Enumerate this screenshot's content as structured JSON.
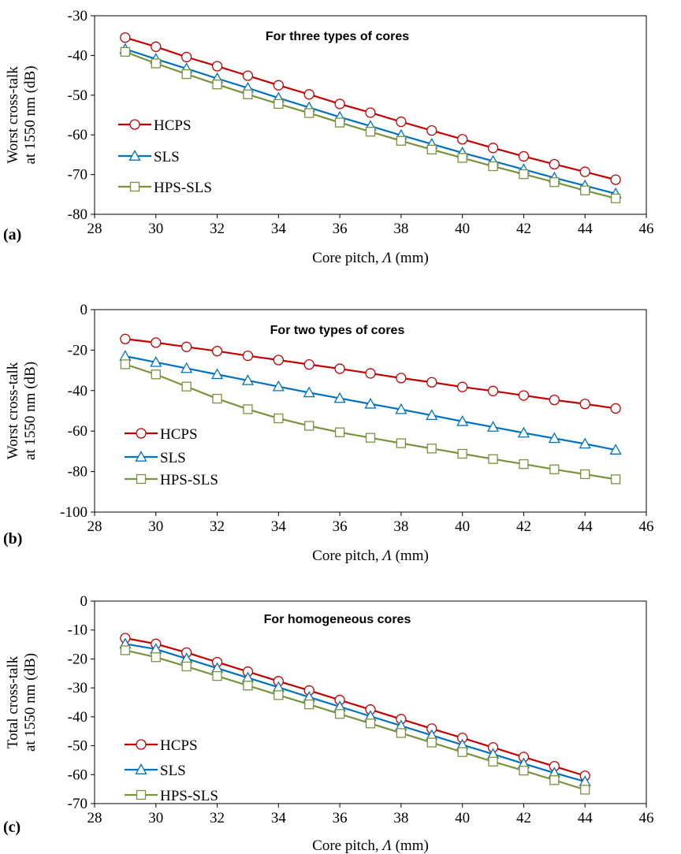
{
  "colors": {
    "HCPS": "#C00000",
    "SLS": "#0070C0",
    "HPS-SLS": "#77933C",
    "axis": "#000000"
  },
  "chart_data": [
    {
      "panel_label": "(a)",
      "type": "line",
      "title": "For three types of cores",
      "xlabel_text": "Core pitch, ",
      "xlabel_symbol": "Λ",
      "xlabel_unit": " (mm)",
      "ylabel": [
        "Worst cross-talk",
        "at 1550 nm (dB)"
      ],
      "xlim": [
        28,
        46
      ],
      "ylim": [
        -80,
        -30
      ],
      "xticks": [
        28,
        30,
        32,
        34,
        36,
        38,
        40,
        42,
        44,
        46
      ],
      "yticks": [
        -80,
        -70,
        -60,
        -50,
        -40,
        -30
      ],
      "grid": false,
      "legend_position": "left",
      "series": [
        {
          "name": "HCPS",
          "marker": "circle",
          "x": [
            29,
            30,
            31,
            32,
            33,
            34,
            35,
            36,
            37,
            38,
            39,
            40,
            41,
            42,
            43,
            44,
            45
          ],
          "y": [
            -35.5,
            -37.8,
            -40.4,
            -42.7,
            -45.1,
            -47.5,
            -49.8,
            -52.2,
            -54.4,
            -56.7,
            -58.9,
            -61.1,
            -63.3,
            -65.4,
            -67.4,
            -69.3,
            -71.3
          ]
        },
        {
          "name": "SLS",
          "marker": "triangle",
          "x": [
            29,
            30,
            31,
            32,
            33,
            34,
            35,
            36,
            37,
            38,
            39,
            40,
            41,
            42,
            43,
            44,
            45
          ],
          "y": [
            -38.4,
            -40.9,
            -43.3,
            -45.8,
            -48.2,
            -50.7,
            -53.1,
            -55.5,
            -57.8,
            -60.1,
            -62.3,
            -64.5,
            -66.6,
            -68.7,
            -70.8,
            -72.8,
            -74.8
          ]
        },
        {
          "name": "HPS-SLS",
          "marker": "square",
          "x": [
            29,
            30,
            31,
            32,
            33,
            34,
            35,
            36,
            37,
            38,
            39,
            40,
            41,
            42,
            43,
            44,
            45
          ],
          "y": [
            -39.1,
            -42.0,
            -44.7,
            -47.3,
            -49.8,
            -52.2,
            -54.5,
            -56.9,
            -59.2,
            -61.5,
            -63.7,
            -65.8,
            -67.9,
            -69.9,
            -71.9,
            -74.0,
            -76.0
          ]
        }
      ]
    },
    {
      "panel_label": "(b)",
      "type": "line",
      "title": "For two types of cores",
      "xlabel_text": "Core pitch, ",
      "xlabel_symbol": "Λ",
      "xlabel_unit": " (mm)",
      "ylabel": [
        "Worst cross-talk",
        "at 1550 nm (dB)"
      ],
      "xlim": [
        28,
        46
      ],
      "ylim": [
        -100,
        0
      ],
      "xticks": [
        28,
        30,
        32,
        34,
        36,
        38,
        40,
        42,
        44,
        46
      ],
      "yticks": [
        -100,
        -80,
        -60,
        -40,
        -20,
        0
      ],
      "grid": false,
      "legend_position": "left",
      "series": [
        {
          "name": "HCPS",
          "marker": "circle",
          "x": [
            29,
            30,
            31,
            32,
            33,
            34,
            35,
            36,
            37,
            38,
            39,
            40,
            41,
            42,
            43,
            44,
            45
          ],
          "y": [
            -14.5,
            -16.3,
            -18.4,
            -20.5,
            -22.8,
            -24.9,
            -27.1,
            -29.2,
            -31.5,
            -33.8,
            -35.9,
            -38.2,
            -40.2,
            -42.4,
            -44.6,
            -46.6,
            -48.8
          ]
        },
        {
          "name": "SLS",
          "marker": "triangle",
          "x": [
            29,
            30,
            31,
            32,
            33,
            34,
            35,
            36,
            37,
            38,
            39,
            40,
            41,
            42,
            43,
            44,
            45
          ],
          "y": [
            -23.0,
            -26.0,
            -29.0,
            -32.0,
            -35.0,
            -38.0,
            -41.0,
            -43.8,
            -46.6,
            -49.3,
            -52.2,
            -55.2,
            -58.0,
            -60.9,
            -63.6,
            -66.3,
            -69.3
          ]
        },
        {
          "name": "HPS-SLS",
          "marker": "square",
          "x": [
            29,
            30,
            31,
            32,
            33,
            34,
            35,
            36,
            37,
            38,
            39,
            40,
            41,
            42,
            43,
            44,
            45
          ],
          "y": [
            -27.0,
            -32.0,
            -38.0,
            -44.0,
            -49.2,
            -53.7,
            -57.4,
            -60.6,
            -63.3,
            -66.0,
            -68.6,
            -71.2,
            -73.8,
            -76.3,
            -78.9,
            -81.3,
            -83.8
          ]
        }
      ]
    },
    {
      "panel_label": "(c)",
      "type": "line",
      "title": "For homogeneous cores",
      "xlabel_text": "Core pitch, ",
      "xlabel_symbol": "Λ",
      "xlabel_unit": " (mm)",
      "ylabel": [
        "Total cross-talk",
        "at 1550 nm (dB)"
      ],
      "xlim": [
        28,
        46
      ],
      "ylim": [
        -70,
        0
      ],
      "xticks": [
        28,
        30,
        32,
        34,
        36,
        38,
        40,
        42,
        44,
        46
      ],
      "yticks": [
        -70,
        -60,
        -50,
        -40,
        -30,
        -20,
        -10,
        0
      ],
      "grid": false,
      "legend_position": "left",
      "series": [
        {
          "name": "HCPS",
          "marker": "circle",
          "x": [
            29,
            30,
            31,
            32,
            33,
            34,
            35,
            36,
            37,
            38,
            39,
            40,
            41,
            42,
            43,
            44
          ],
          "y": [
            -12.8,
            -14.8,
            -17.8,
            -21.1,
            -24.4,
            -27.7,
            -30.9,
            -34.2,
            -37.5,
            -40.8,
            -44.1,
            -47.3,
            -50.6,
            -53.9,
            -57.1,
            -60.4
          ]
        },
        {
          "name": "SLS",
          "marker": "triangle",
          "x": [
            29,
            30,
            31,
            32,
            33,
            34,
            35,
            36,
            37,
            38,
            39,
            40,
            41,
            42,
            43,
            44
          ],
          "y": [
            -14.8,
            -16.6,
            -19.9,
            -23.2,
            -26.5,
            -29.8,
            -33.2,
            -36.5,
            -39.8,
            -43.1,
            -46.4,
            -49.7,
            -52.9,
            -56.2,
            -59.4,
            -62.4
          ]
        },
        {
          "name": "HPS-SLS",
          "marker": "square",
          "x": [
            29,
            30,
            31,
            32,
            33,
            34,
            35,
            36,
            37,
            38,
            39,
            40,
            41,
            42,
            43,
            44
          ],
          "y": [
            -17.0,
            -19.4,
            -22.6,
            -25.9,
            -29.2,
            -32.5,
            -35.7,
            -39.0,
            -42.3,
            -45.6,
            -48.9,
            -52.2,
            -55.5,
            -58.6,
            -61.9,
            -65.2
          ]
        }
      ]
    }
  ]
}
